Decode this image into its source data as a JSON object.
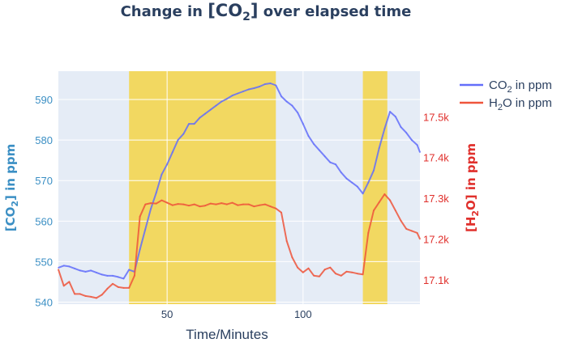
{
  "chart_data": {
    "type": "line",
    "title": {
      "pre": "Change in ",
      "main": "[CO",
      "sub": "2",
      "post": "]",
      "tail": " over elapsed time"
    },
    "xlabel": "Time/Minutes",
    "ylabel_left": {
      "pre": "[CO",
      "sub": "2",
      "post": "] in ppm"
    },
    "ylabel_right": {
      "pre": "[H",
      "sub": "2",
      "post": "O] in ppm"
    },
    "xlim": [
      10,
      143
    ],
    "ylim_left": [
      539.5,
      597
    ],
    "ylim_right": [
      17040,
      17612
    ],
    "x_ticks": [
      50,
      100
    ],
    "x_tick_labels": [
      "50",
      "100"
    ],
    "y_left_ticks": [
      540,
      550,
      560,
      570,
      580,
      590
    ],
    "y_left_tick_labels": [
      "540",
      "550",
      "560",
      "570",
      "580",
      "590"
    ],
    "y_right_ticks": [
      17100,
      17200,
      17300,
      17400,
      17500
    ],
    "y_right_tick_labels": [
      "17.1k",
      "17.2k",
      "17.3k",
      "17.4k",
      "17.5k"
    ],
    "grid": true,
    "legend_position": "top-right",
    "shaded_regions": [
      [
        36,
        90
      ],
      [
        122,
        131
      ]
    ],
    "colors": {
      "plot_bg": "#e5ecf6",
      "grid": "#ffffff",
      "highlight": "#f5d547",
      "co2": "#636efa",
      "h2o": "#ef553b",
      "left_axis": "#3b8fc4",
      "right_axis": "#e0302c",
      "title": "#2a3f5f",
      "xaxis": "#2a3f5f"
    },
    "series": [
      {
        "name": {
          "pre": "CO",
          "sub": "2",
          "post": " in ppm"
        },
        "axis": "left",
        "color": "#636efa",
        "x": [
          10,
          12,
          14,
          16,
          18,
          20,
          22,
          24,
          26,
          28,
          30,
          32,
          34,
          36,
          38,
          40,
          42,
          44,
          46,
          48,
          50,
          52,
          54,
          56,
          58,
          60,
          62,
          64,
          66,
          68,
          70,
          72,
          74,
          76,
          78,
          80,
          82,
          84,
          86,
          88,
          90,
          92,
          94,
          96,
          98,
          100,
          102,
          104,
          106,
          108,
          110,
          112,
          114,
          116,
          118,
          120,
          122,
          124,
          126,
          128,
          130,
          132,
          134,
          136,
          138,
          140,
          142,
          143
        ],
        "values": [
          548.5,
          549,
          548.8,
          548.3,
          547.8,
          547.5,
          547.8,
          547.3,
          546.8,
          546.5,
          546.5,
          546.2,
          545.8,
          548,
          547.5,
          553,
          558,
          563,
          567,
          571.5,
          574,
          577,
          580,
          581.5,
          584,
          584,
          585.5,
          586.5,
          587.5,
          588.5,
          589.5,
          590.2,
          591,
          591.5,
          592,
          592.5,
          592.8,
          593.2,
          593.8,
          594,
          593.5,
          590.8,
          589.5,
          588.5,
          586.8,
          584,
          581,
          579,
          577.5,
          576,
          574.5,
          574,
          572,
          570.5,
          569.5,
          568.5,
          566.8,
          569.5,
          572.5,
          578,
          582.8,
          587,
          585.8,
          583.2,
          581.8,
          580,
          578.8,
          577
        ]
      },
      {
        "name": {
          "pre": "H",
          "sub": "2",
          "post": "O in ppm"
        },
        "axis": "right",
        "color": "#ef553b",
        "x": [
          10,
          12,
          14,
          16,
          18,
          20,
          22,
          24,
          26,
          28,
          30,
          32,
          34,
          36,
          38,
          40,
          42,
          44,
          46,
          48,
          50,
          52,
          54,
          56,
          58,
          60,
          62,
          64,
          66,
          68,
          70,
          72,
          74,
          76,
          78,
          80,
          82,
          84,
          86,
          88,
          90,
          92,
          94,
          96,
          98,
          100,
          102,
          104,
          106,
          108,
          110,
          112,
          114,
          116,
          118,
          120,
          122,
          124,
          126,
          128,
          130,
          132,
          134,
          136,
          138,
          140,
          142,
          143
        ],
        "values": [
          17125,
          17085,
          17095,
          17065,
          17065,
          17060,
          17058,
          17055,
          17063,
          17078,
          17090,
          17082,
          17080,
          17080,
          17110,
          17255,
          17285,
          17288,
          17287,
          17295,
          17289,
          17283,
          17286,
          17285,
          17282,
          17285,
          17280,
          17282,
          17287,
          17285,
          17288,
          17285,
          17289,
          17283,
          17285,
          17285,
          17280,
          17283,
          17285,
          17280,
          17275,
          17265,
          17195,
          17155,
          17130,
          17118,
          17128,
          17110,
          17108,
          17125,
          17130,
          17115,
          17110,
          17120,
          17118,
          17115,
          17113,
          17215,
          17270,
          17290,
          17310,
          17295,
          17270,
          17245,
          17225,
          17220,
          17215,
          17200
        ]
      }
    ]
  }
}
